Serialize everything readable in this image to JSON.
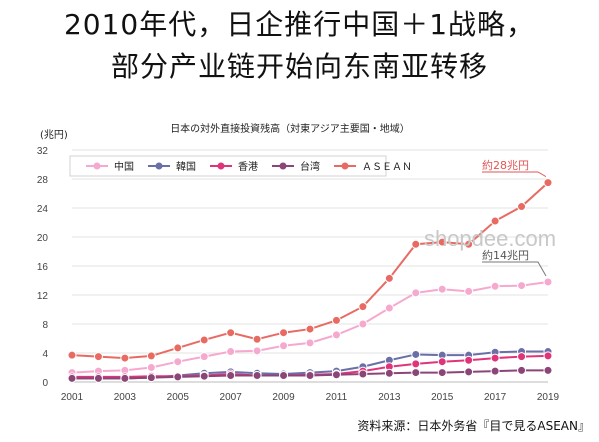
{
  "headline": {
    "line1": "2010年代，日企推行中国＋1战略，",
    "line2": "部分产业链开始向东南亚转移"
  },
  "source_note": "资料来源：日本外务省『目で見るASEAN』",
  "watermark": "shopdee.com",
  "chart_data": {
    "type": "line",
    "title": "日本の対外直接投資残高（対東アジア主要国・地域）",
    "unit_label": "(兆円)",
    "x": [
      2001,
      2002,
      2003,
      2004,
      2005,
      2006,
      2007,
      2008,
      2009,
      2010,
      2011,
      2012,
      2013,
      2014,
      2015,
      2016,
      2017,
      2018,
      2019
    ],
    "x_ticks": [
      2001,
      2003,
      2005,
      2007,
      2009,
      2011,
      2013,
      2015,
      2017,
      2019
    ],
    "ylim": [
      0,
      32
    ],
    "y_ticks": [
      0,
      4,
      8,
      12,
      16,
      20,
      24,
      28,
      32
    ],
    "grid": true,
    "legend_position": "top-left",
    "series": [
      {
        "name": "中国",
        "color": "#f5a9cf",
        "values": [
          1.3,
          1.5,
          1.6,
          2.0,
          2.8,
          3.5,
          4.2,
          4.3,
          5.0,
          5.4,
          6.5,
          8.0,
          10.2,
          12.3,
          12.8,
          12.5,
          13.2,
          13.3,
          13.8
        ]
      },
      {
        "name": "韓国",
        "color": "#6a6fa8",
        "values": [
          0.5,
          0.5,
          0.5,
          0.6,
          0.9,
          1.2,
          1.4,
          1.2,
          1.1,
          1.3,
          1.5,
          2.1,
          3.0,
          3.8,
          3.7,
          3.7,
          4.1,
          4.2,
          4.2
        ]
      },
      {
        "name": "香港",
        "color": "#e0347a",
        "values": [
          0.7,
          0.7,
          0.7,
          0.8,
          0.8,
          0.9,
          1.1,
          0.9,
          0.9,
          1.0,
          1.1,
          1.5,
          2.1,
          2.5,
          2.8,
          3.0,
          3.3,
          3.5,
          3.6
        ]
      },
      {
        "name": "台湾",
        "color": "#8b4577",
        "values": [
          0.5,
          0.5,
          0.5,
          0.6,
          0.7,
          0.8,
          0.9,
          0.9,
          0.9,
          0.9,
          1.0,
          1.1,
          1.2,
          1.3,
          1.3,
          1.4,
          1.5,
          1.6,
          1.6
        ]
      },
      {
        "name": "ＡＳＥＡＮ",
        "color": "#e86b63",
        "values": [
          3.7,
          3.5,
          3.3,
          3.6,
          4.7,
          5.8,
          6.8,
          5.9,
          6.8,
          7.3,
          8.5,
          10.4,
          14.3,
          19.0,
          19.3,
          19.0,
          22.2,
          24.2,
          27.5
        ]
      }
    ],
    "annotations": [
      {
        "text": "約28兆円",
        "color": "#e05555"
      },
      {
        "text": "約14兆円",
        "color": "#555555"
      }
    ]
  }
}
